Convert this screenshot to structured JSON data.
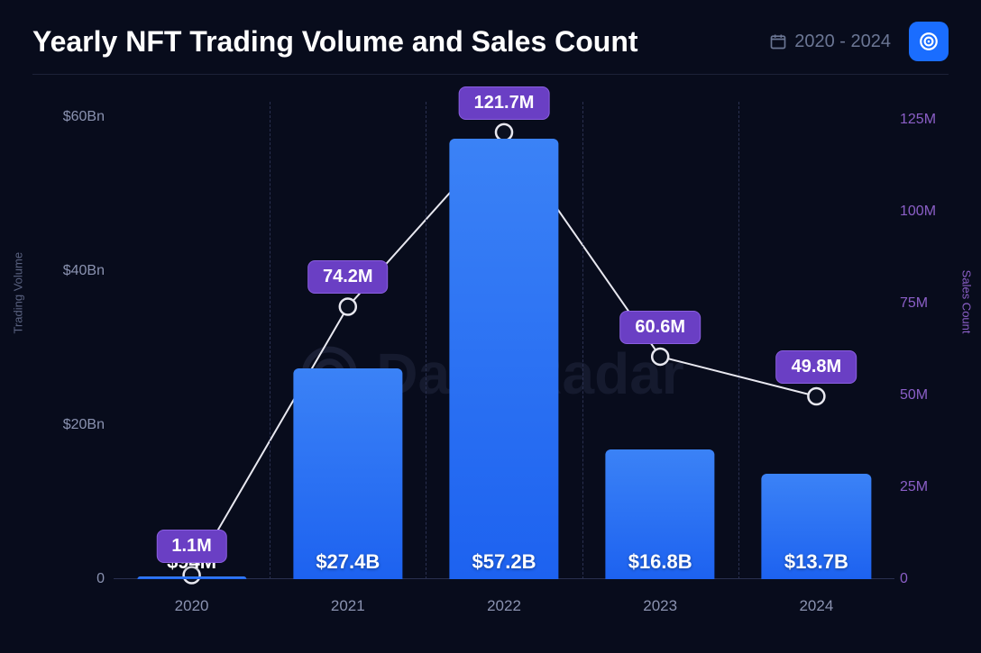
{
  "header": {
    "title": "Yearly NFT Trading Volume and Sales Count",
    "date_range": "2020 - 2024"
  },
  "watermark": "DappRadar",
  "chart": {
    "type": "bar+line",
    "background_color": "#080c1c",
    "categories": [
      "2020",
      "2021",
      "2022",
      "2023",
      "2024"
    ],
    "bar_series": {
      "name": "Trading Volume",
      "bar_color": "#2f74f5",
      "bar_width_pct": 14,
      "values_bn": [
        0.094,
        27.4,
        57.2,
        16.8,
        13.7
      ],
      "value_labels": [
        "$94M",
        "$27.4B",
        "$57.2B",
        "$16.8B",
        "$13.7B"
      ],
      "label_fontsize": 22,
      "label_color": "#ffffff"
    },
    "line_series": {
      "name": "Sales Count",
      "line_color": "#e8e8f0",
      "line_width": 2,
      "marker_fill": "#0b1020",
      "marker_stroke": "#e8e8f0",
      "marker_radius": 9,
      "values_m": [
        1.1,
        74.2,
        121.7,
        60.6,
        49.8
      ],
      "value_labels": [
        "1.1M",
        "74.2M",
        "121.7M",
        "60.6M",
        "49.8M"
      ],
      "badge_bg": "#6a3fc4",
      "badge_border": "#8a5fe0",
      "badge_fontsize": 20
    },
    "y_left": {
      "label": "Trading Volume",
      "label_color": "#5a6280",
      "min": 0,
      "max": 62,
      "ticks": [
        {
          "v": 0,
          "label": "0"
        },
        {
          "v": 20,
          "label": "$20Bn"
        },
        {
          "v": 40,
          "label": "$40Bn"
        },
        {
          "v": 60,
          "label": "$60Bn"
        }
      ],
      "tick_color": "#8a92b0",
      "tick_fontsize": 16
    },
    "y_right": {
      "label": "Sales Count",
      "label_color": "#8b5fc7",
      "min": 0,
      "max": 130,
      "ticks": [
        {
          "v": 0,
          "label": "0"
        },
        {
          "v": 25,
          "label": "25M"
        },
        {
          "v": 50,
          "label": "50M"
        },
        {
          "v": 75,
          "label": "75M"
        },
        {
          "v": 100,
          "label": "100M"
        },
        {
          "v": 125,
          "label": "125M"
        }
      ],
      "tick_color": "#8b5fc7",
      "tick_fontsize": 16
    },
    "x_axis": {
      "tick_color": "#8a92b0",
      "tick_fontsize": 17,
      "grid_color": "#2a3050",
      "grid_dash": true
    }
  }
}
